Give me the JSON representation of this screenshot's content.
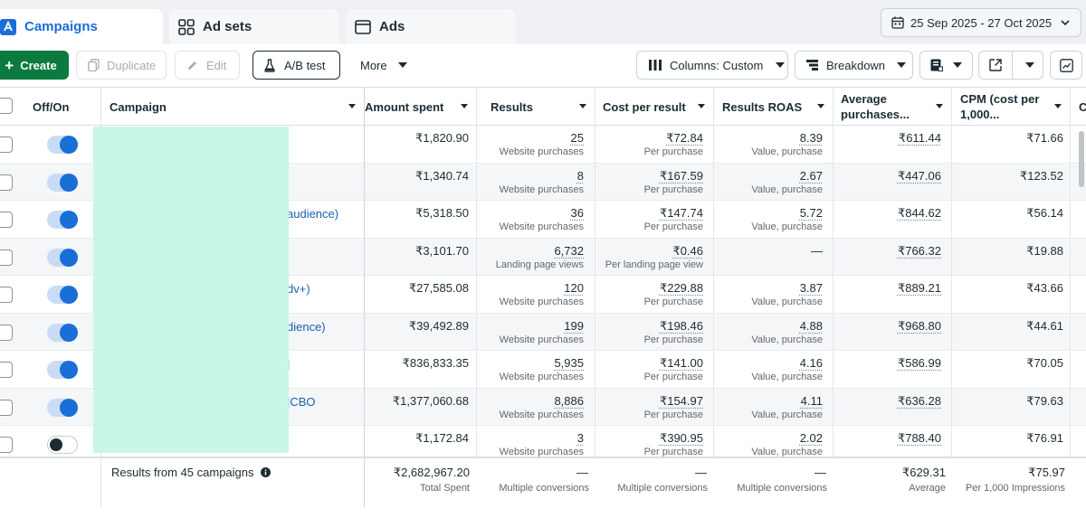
{
  "tabs": {
    "campaigns": "Campaigns",
    "ad_sets": "Ad sets",
    "ads": "Ads"
  },
  "date_range": "25 Sep 2025 - 27 Oct 2025",
  "toolbar": {
    "create": "Create",
    "duplicate": "Duplicate",
    "edit": "Edit",
    "ab_test": "A/B test",
    "more": "More",
    "columns": "Columns: Custom",
    "breakdown": "Breakdown"
  },
  "columns": {
    "offon": "Off/On",
    "campaign": "Campaign",
    "amount_spent": "Amount spent",
    "results": "Results",
    "cost_per_result": "Cost per result",
    "results_roas": "Results ROAS",
    "avg_purchases_line1": "Average",
    "avg_purchases_line2": "purchases...",
    "cpm_line1": "CPM (cost per",
    "cpm_line2": "1,000...",
    "next_partial": "C"
  },
  "rows": [
    {
      "on": true,
      "name": "",
      "spent": "₹1,820.90",
      "results": "25",
      "results_sub": "Website purchases",
      "cost": "₹72.84",
      "cost_sub": "Per purchase",
      "roas": "8.39",
      "roas_sub": "Value, purchase",
      "avg": "₹611.44",
      "cpm": "₹71.66"
    },
    {
      "on": true,
      "name": "",
      "spent": "₹1,340.74",
      "results": "8",
      "results_sub": "Website purchases",
      "cost": "₹167.59",
      "cost_sub": "Per purchase",
      "roas": "2.67",
      "roas_sub": "Value, purchase",
      "avg": "₹447.06",
      "cpm": "₹123.52"
    },
    {
      "on": true,
      "name": "audience)",
      "spent": "₹5,318.50",
      "results": "36",
      "results_sub": "Website purchases",
      "cost": "₹147.74",
      "cost_sub": "Per purchase",
      "roas": "5.72",
      "roas_sub": "Value, purchase",
      "avg": "₹844.62",
      "cpm": "₹56.14"
    },
    {
      "on": true,
      "name": "",
      "spent": "₹3,101.70",
      "results": "6,732",
      "results_sub": "Landing page views",
      "cost": "₹0.46",
      "cost_sub": "Per landing page view",
      "roas": "—",
      "roas_sub": "",
      "avg": "₹766.32",
      "cpm": "₹19.88"
    },
    {
      "on": true,
      "name": "dv+)",
      "spent": "₹27,585.08",
      "results": "120",
      "results_sub": "Website purchases",
      "cost": "₹229.88",
      "cost_sub": "Per purchase",
      "roas": "3.87",
      "roas_sub": "Value, purchase",
      "avg": "₹889.21",
      "cpm": "₹43.66"
    },
    {
      "on": true,
      "name": "dience)",
      "spent": "₹39,492.89",
      "results": "199",
      "results_sub": "Website purchases",
      "cost": "₹198.46",
      "cost_sub": "Per purchase",
      "roas": "4.88",
      "roas_sub": "Value, purchase",
      "avg": "₹968.80",
      "cpm": "₹44.61"
    },
    {
      "on": true,
      "name": "|",
      "spent": "₹836,833.35",
      "results": "5,935",
      "results_sub": "Website purchases",
      "cost": "₹141.00",
      "cost_sub": "Per purchase",
      "roas": "4.16",
      "roas_sub": "Value, purchase",
      "avg": "₹586.99",
      "cpm": "₹70.05"
    },
    {
      "on": true,
      "name": "|CBO",
      "spent": "₹1,377,060.68",
      "results": "8,886",
      "results_sub": "Website purchases",
      "cost": "₹154.97",
      "cost_sub": "Per purchase",
      "roas": "4.11",
      "roas_sub": "Value, purchase",
      "avg": "₹636.28",
      "cpm": "₹79.63"
    },
    {
      "on": false,
      "name": "",
      "spent": "₹1,172.84",
      "results": "3",
      "results_sub": "Website purchases",
      "cost": "₹390.95",
      "cost_sub": "Per purchase",
      "roas": "2.02",
      "roas_sub": "Value, purchase",
      "avg": "₹788.40",
      "cpm": "₹76.91"
    }
  ],
  "footer": {
    "label": "Results from 45 campaigns",
    "spent": "₹2,682,967.20",
    "spent_sub": "Total Spent",
    "results": "—",
    "results_sub": "Multiple conversions",
    "cost": "—",
    "cost_sub": "Multiple conversions",
    "roas": "—",
    "roas_sub": "Multiple conversions",
    "avg": "₹629.31",
    "avg_sub": "Average",
    "cpm": "₹75.97",
    "cpm_sub": "Per 1,000 Impressions"
  },
  "colors": {
    "accent_blue": "#1a6ed8",
    "create_green": "#0a7a3e",
    "redaction": "#c8f7e6"
  }
}
